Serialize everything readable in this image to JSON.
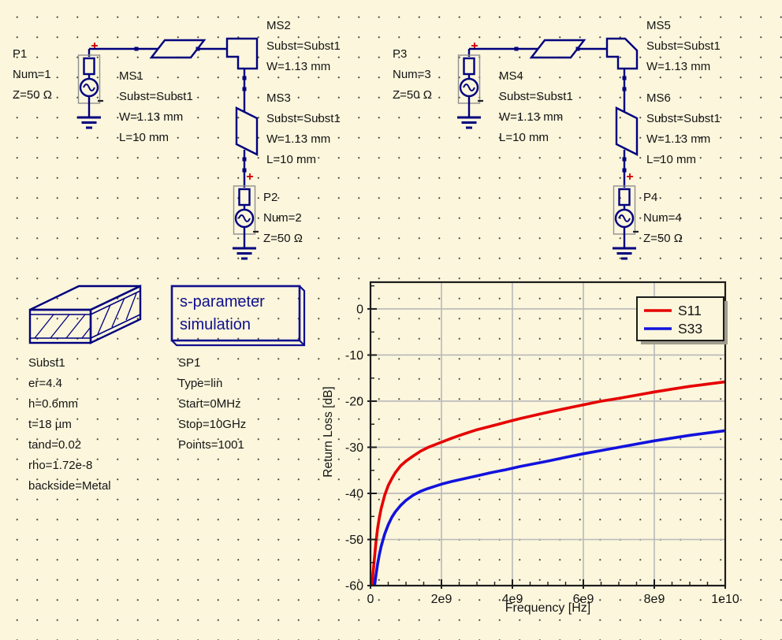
{
  "app": {
    "background_color": "#FBF6DC",
    "wire_color": "#00007E",
    "component_text_color": "#141414",
    "simulation_box_color": "#10108e",
    "port_plus_color": "#D40000"
  },
  "components": {
    "p1": {
      "name": "P1",
      "params": [
        "Num=1",
        "Z=50 Ω"
      ]
    },
    "ms1": {
      "name": "MS1",
      "params": [
        "Subst=Subst1",
        "W=1.13 mm",
        "L=10 mm"
      ]
    },
    "ms2": {
      "name": "MS2",
      "params": [
        "Subst=Subst1",
        "W=1.13 mm"
      ]
    },
    "ms3": {
      "name": "MS3",
      "params": [
        "Subst=Subst1",
        "W=1.13 mm",
        "L=10 mm"
      ]
    },
    "p2": {
      "name": "P2",
      "params": [
        "Num=2",
        "Z=50 Ω"
      ]
    },
    "p3": {
      "name": "P3",
      "params": [
        "Num=3",
        "Z=50 Ω"
      ]
    },
    "ms4": {
      "name": "MS4",
      "params": [
        "Subst=Subst1",
        "W=1.13 mm",
        "L=10 mm"
      ]
    },
    "ms5": {
      "name": "MS5",
      "params": [
        "Subst=Subst1",
        "W=1.13 mm"
      ]
    },
    "ms6": {
      "name": "MS6",
      "params": [
        "Subst=Subst1",
        "W=1.13 mm",
        "L=10 mm"
      ]
    },
    "p4": {
      "name": "P4",
      "params": [
        "Num=4",
        "Z=50 Ω"
      ]
    },
    "subst1": {
      "name": "Subst1",
      "params": [
        "er=4.4",
        "h=0.6mm",
        "t=18 µm",
        "tand=0.02",
        "rho=1.72e-8",
        "backside=Metal"
      ]
    },
    "sp1": {
      "box_line1": "s-parameter",
      "box_line2": "simulation",
      "name": "SP1",
      "params": [
        "Type=lin",
        "Start=0MHz",
        "Stop=10GHz",
        "Points=1001"
      ]
    }
  },
  "chart_data": {
    "type": "line",
    "title": "",
    "xlabel": "Frequency [Hz]",
    "ylabel": "Return Loss [dB]",
    "xlim": [
      0,
      10000000000.0
    ],
    "ylim": [
      -60,
      5.8
    ],
    "grid": "major-gray",
    "legend_position": "top-right",
    "frame_color": "#1c1c1c",
    "grid_color": "#b9b9b9",
    "xticks": [
      {
        "v": 0,
        "label": "0"
      },
      {
        "v": 2000000000.0,
        "label": "2e9"
      },
      {
        "v": 4000000000.0,
        "label": "4e9"
      },
      {
        "v": 6000000000.0,
        "label": "6e9"
      },
      {
        "v": 8000000000.0,
        "label": "8e9"
      },
      {
        "v": 10000000000.0,
        "label": "1e10"
      }
    ],
    "yticks": [
      {
        "v": 0,
        "label": "0"
      },
      {
        "v": -10,
        "label": "-10"
      },
      {
        "v": -20,
        "label": "-20"
      },
      {
        "v": -30,
        "label": "-30"
      },
      {
        "v": -40,
        "label": "-40"
      },
      {
        "v": -50,
        "label": "-50"
      },
      {
        "v": -60,
        "label": "-60"
      }
    ],
    "x_minor_step": 500000000.0,
    "y_minor_step": 5,
    "series": [
      {
        "name": "S11",
        "color": "#E60000",
        "points": [
          [
            40000000.0,
            -61
          ],
          [
            70000000.0,
            -57.5
          ],
          [
            100000000.0,
            -55
          ],
          [
            150000000.0,
            -50.8
          ],
          [
            200000000.0,
            -47.6
          ],
          [
            250000000.0,
            -45.2
          ],
          [
            300000000.0,
            -43.3
          ],
          [
            400000000.0,
            -40.4
          ],
          [
            500000000.0,
            -38.3
          ],
          [
            600000000.0,
            -36.8
          ],
          [
            700000000.0,
            -35.5
          ],
          [
            850000000.0,
            -34
          ],
          [
            1000000000.0,
            -33
          ],
          [
            1200000000.0,
            -31.9
          ],
          [
            1400000000.0,
            -30.9
          ],
          [
            1600000000.0,
            -30.1
          ],
          [
            1800000000.0,
            -29.5
          ],
          [
            2000000000.0,
            -28.9
          ],
          [
            2300000000.0,
            -28
          ],
          [
            2600000000.0,
            -27.2
          ],
          [
            3000000000.0,
            -26.2
          ],
          [
            3400000000.0,
            -25.4
          ],
          [
            3800000000.0,
            -24.6
          ],
          [
            4200000000.0,
            -23.8
          ],
          [
            4600000000.0,
            -23.1
          ],
          [
            5000000000.0,
            -22.4
          ],
          [
            5500000000.0,
            -21.6
          ],
          [
            6000000000.0,
            -20.8
          ],
          [
            6500000000.0,
            -20
          ],
          [
            7000000000.0,
            -19.4
          ],
          [
            7500000000.0,
            -18.7
          ],
          [
            8000000000.0,
            -18
          ],
          [
            8500000000.0,
            -17.4
          ],
          [
            9000000000.0,
            -16.8
          ],
          [
            9500000000.0,
            -16.3
          ],
          [
            10000000000.0,
            -15.8
          ]
        ]
      },
      {
        "name": "S33",
        "color": "#1212DD",
        "points": [
          [
            100000000.0,
            -61
          ],
          [
            140000000.0,
            -58.5
          ],
          [
            200000000.0,
            -55.3
          ],
          [
            250000000.0,
            -53.2
          ],
          [
            300000000.0,
            -51.5
          ],
          [
            400000000.0,
            -48.8
          ],
          [
            500000000.0,
            -46.8
          ],
          [
            600000000.0,
            -45.2
          ],
          [
            700000000.0,
            -44
          ],
          [
            850000000.0,
            -42.6
          ],
          [
            1000000000.0,
            -41.5
          ],
          [
            1200000000.0,
            -40.4
          ],
          [
            1400000000.0,
            -39.6
          ],
          [
            1600000000.0,
            -39
          ],
          [
            1800000000.0,
            -38.5
          ],
          [
            2000000000.0,
            -38
          ],
          [
            2300000000.0,
            -37.4
          ],
          [
            2600000000.0,
            -36.9
          ],
          [
            3000000000.0,
            -36.2
          ],
          [
            3400000000.0,
            -35.5
          ],
          [
            3800000000.0,
            -34.9
          ],
          [
            4200000000.0,
            -34.2
          ],
          [
            4600000000.0,
            -33.6
          ],
          [
            5000000000.0,
            -33
          ],
          [
            5500000000.0,
            -32.2
          ],
          [
            6000000000.0,
            -31.4
          ],
          [
            6500000000.0,
            -30.7
          ],
          [
            7000000000.0,
            -30
          ],
          [
            7500000000.0,
            -29.3
          ],
          [
            8000000000.0,
            -28.6
          ],
          [
            8500000000.0,
            -28
          ],
          [
            9000000000.0,
            -27.4
          ],
          [
            9500000000.0,
            -26.9
          ],
          [
            10000000000.0,
            -26.4
          ]
        ]
      }
    ]
  }
}
